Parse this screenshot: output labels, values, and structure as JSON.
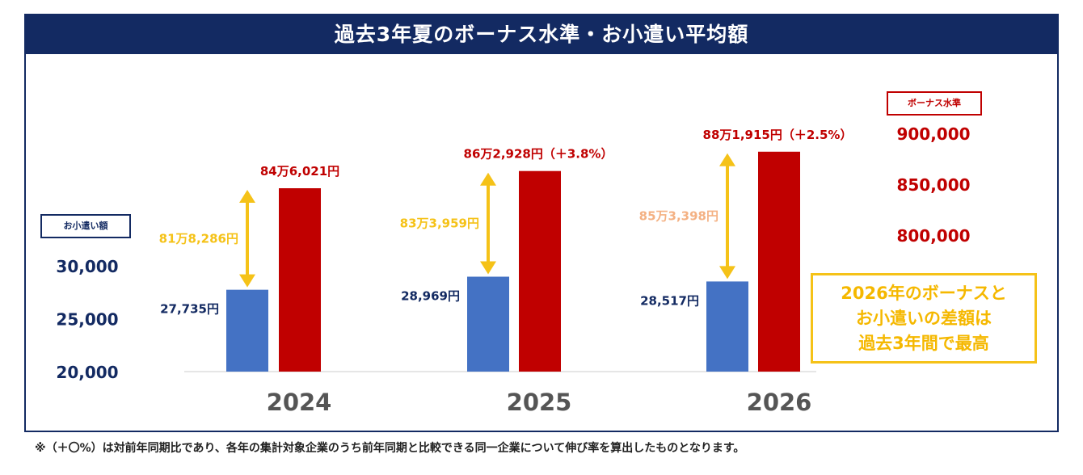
{
  "chart_data": {
    "type": "bar",
    "title": "過去3年夏のボーナス水準・お小遣い平均額",
    "categories": [
      "2024",
      "2025",
      "2026"
    ],
    "series": [
      {
        "name": "お小遣い額",
        "axis": "left",
        "color": "#4472c4",
        "values": [
          27735,
          28969,
          28517
        ],
        "labels": [
          "27,735円",
          "28,969円",
          "28,517円"
        ]
      },
      {
        "name": "ボーナス水準",
        "axis": "right",
        "color": "#c00000",
        "values": [
          846021,
          862928,
          881915
        ],
        "labels": [
          "84万6,021円",
          "86万2,928円（＋3.8%）",
          "88万1,915円（＋2.5%）"
        ]
      }
    ],
    "differences": {
      "values": [
        818286,
        833959,
        853398
      ],
      "labels": [
        "81万8,286円",
        "83万3,959円",
        "85万3,398円"
      ],
      "colors": [
        "#f5c218",
        "#f5c218",
        "#f4b183"
      ]
    },
    "left_axis": {
      "ticks": [
        20000,
        25000,
        30000
      ],
      "tick_labels": [
        "20,000",
        "25,000",
        "30,000"
      ],
      "label": "お小遣い額"
    },
    "right_axis": {
      "ticks": [
        800000,
        850000,
        900000
      ],
      "tick_labels": [
        "800,000",
        "850,000",
        "900,000"
      ],
      "label": "ボーナス水準"
    },
    "annotation": [
      "2026年のボーナスと",
      "お小遣いの差額は",
      "過去3年間で最高"
    ],
    "grid": false,
    "colors": {
      "navy": "#132a62",
      "blue": "#4472c4",
      "red": "#c00000",
      "gold": "#f5c218",
      "peach": "#f4b183"
    }
  },
  "footnote": "※（＋〇%）は対前年同期比であり、各年の集計対象企業のうち前年同期と比較できる同一企業について伸び率を算出したものとなります。"
}
